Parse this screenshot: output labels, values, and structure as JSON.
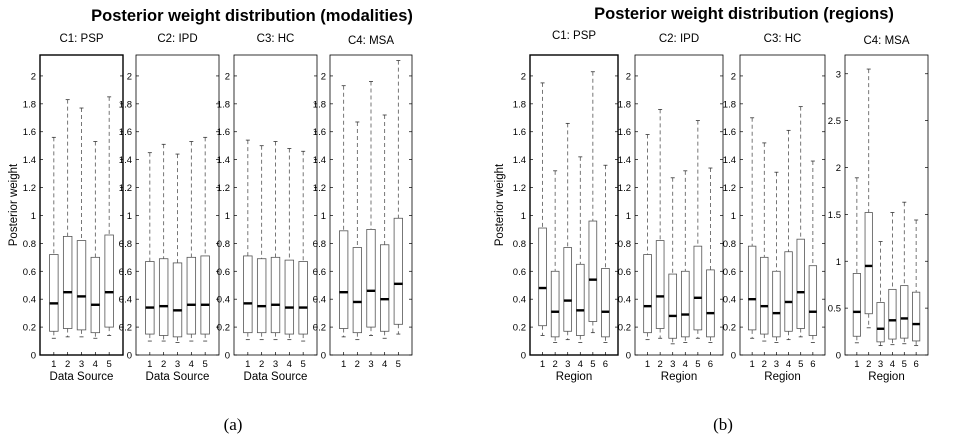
{
  "groups": [
    {
      "title": "Posterior weight distribution (modalities)",
      "caption": "(a)"
    },
    {
      "title": "Posterior weight distribution (regions)",
      "caption": "(b)"
    }
  ],
  "chart_data": [
    {
      "type": "box",
      "group": 0,
      "title": "C1: PSP",
      "xlabel": "Data Source",
      "ylabel": "Posterior weight",
      "categories": [
        "1",
        "2",
        "3",
        "4",
        "5"
      ],
      "ylim": [
        0,
        2.15
      ],
      "yticks": [
        0,
        0.2,
        0.4,
        0.6,
        0.8,
        1,
        1.2,
        1.4,
        1.6,
        1.8,
        2
      ],
      "boxes": [
        {
          "low": 0.12,
          "q1": 0.17,
          "median": 0.37,
          "q3": 0.72,
          "high": 1.56
        },
        {
          "low": 0.13,
          "q1": 0.19,
          "median": 0.45,
          "q3": 0.85,
          "high": 1.83
        },
        {
          "low": 0.13,
          "q1": 0.18,
          "median": 0.42,
          "q3": 0.82,
          "high": 1.77
        },
        {
          "low": 0.12,
          "q1": 0.16,
          "median": 0.36,
          "q3": 0.7,
          "high": 1.53
        },
        {
          "low": 0.14,
          "q1": 0.2,
          "median": 0.45,
          "q3": 0.86,
          "high": 1.85
        }
      ]
    },
    {
      "type": "box",
      "group": 0,
      "title": "C2: IPD",
      "xlabel": "Data Source",
      "ylabel": "",
      "categories": [
        "1",
        "2",
        "3",
        "4",
        "5"
      ],
      "ylim": [
        0,
        2.15
      ],
      "yticks": [
        0,
        0.2,
        0.4,
        0.6,
        0.8,
        1,
        1.2,
        1.4,
        1.6,
        1.8,
        2
      ],
      "boxes": [
        {
          "low": 0.1,
          "q1": 0.15,
          "median": 0.34,
          "q3": 0.67,
          "high": 1.45
        },
        {
          "low": 0.1,
          "q1": 0.14,
          "median": 0.35,
          "q3": 0.69,
          "high": 1.51
        },
        {
          "low": 0.09,
          "q1": 0.13,
          "median": 0.32,
          "q3": 0.66,
          "high": 1.44
        },
        {
          "low": 0.1,
          "q1": 0.15,
          "median": 0.36,
          "q3": 0.7,
          "high": 1.53
        },
        {
          "low": 0.1,
          "q1": 0.15,
          "median": 0.36,
          "q3": 0.71,
          "high": 1.56
        }
      ]
    },
    {
      "type": "box",
      "group": 0,
      "title": "C3: HC",
      "xlabel": "Data Source",
      "ylabel": "",
      "categories": [
        "1",
        "2",
        "3",
        "4",
        "5"
      ],
      "ylim": [
        0,
        2.15
      ],
      "yticks": [
        0,
        0.2,
        0.4,
        0.6,
        0.8,
        1,
        1.2,
        1.4,
        1.6,
        1.8,
        2
      ],
      "boxes": [
        {
          "low": 0.11,
          "q1": 0.16,
          "median": 0.37,
          "q3": 0.71,
          "high": 1.54
        },
        {
          "low": 0.11,
          "q1": 0.16,
          "median": 0.35,
          "q3": 0.69,
          "high": 1.5
        },
        {
          "low": 0.11,
          "q1": 0.16,
          "median": 0.36,
          "q3": 0.7,
          "high": 1.53
        },
        {
          "low": 0.11,
          "q1": 0.15,
          "median": 0.34,
          "q3": 0.68,
          "high": 1.48
        },
        {
          "low": 0.1,
          "q1": 0.15,
          "median": 0.34,
          "q3": 0.67,
          "high": 1.46
        }
      ]
    },
    {
      "type": "box",
      "group": 0,
      "title": "C4: MSA",
      "xlabel": "",
      "ylabel": "",
      "categories": [
        "1",
        "2",
        "3",
        "4",
        "5"
      ],
      "ylim": [
        0,
        2.15
      ],
      "yticks": [
        0,
        0.2,
        0.4,
        0.6,
        0.8,
        1,
        1.2,
        1.4,
        1.6,
        1.8,
        2
      ],
      "boxes": [
        {
          "low": 0.13,
          "q1": 0.19,
          "median": 0.45,
          "q3": 0.89,
          "high": 1.93
        },
        {
          "low": 0.11,
          "q1": 0.16,
          "median": 0.38,
          "q3": 0.77,
          "high": 1.67
        },
        {
          "low": 0.14,
          "q1": 0.2,
          "median": 0.46,
          "q3": 0.9,
          "high": 1.96
        },
        {
          "low": 0.12,
          "q1": 0.17,
          "median": 0.4,
          "q3": 0.79,
          "high": 1.72
        },
        {
          "low": 0.15,
          "q1": 0.22,
          "median": 0.51,
          "q3": 0.98,
          "high": 2.11
        }
      ]
    },
    {
      "type": "box",
      "group": 1,
      "title": "C1: PSP",
      "xlabel": "Region",
      "ylabel": "Posterior weight",
      "categories": [
        "1",
        "2",
        "3",
        "4",
        "5",
        "6"
      ],
      "ylim": [
        0,
        2.15
      ],
      "yticks": [
        0,
        0.2,
        0.4,
        0.6,
        0.8,
        1,
        1.2,
        1.4,
        1.6,
        1.8,
        2
      ],
      "boxes": [
        {
          "low": 0.14,
          "q1": 0.21,
          "median": 0.48,
          "q3": 0.91,
          "high": 1.95
        },
        {
          "low": 0.09,
          "q1": 0.13,
          "median": 0.31,
          "q3": 0.6,
          "high": 1.32
        },
        {
          "low": 0.11,
          "q1": 0.17,
          "median": 0.39,
          "q3": 0.77,
          "high": 1.66
        },
        {
          "low": 0.09,
          "q1": 0.14,
          "median": 0.32,
          "q3": 0.65,
          "high": 1.42
        },
        {
          "low": 0.16,
          "q1": 0.24,
          "median": 0.54,
          "q3": 0.96,
          "high": 2.03
        },
        {
          "low": 0.09,
          "q1": 0.13,
          "median": 0.31,
          "q3": 0.62,
          "high": 1.36
        }
      ]
    },
    {
      "type": "box",
      "group": 1,
      "title": "C2: IPD",
      "xlabel": "Region",
      "ylabel": "",
      "categories": [
        "1",
        "2",
        "3",
        "4",
        "5",
        "6"
      ],
      "ylim": [
        0,
        2.15
      ],
      "yticks": [
        0,
        0.2,
        0.4,
        0.6,
        0.8,
        1,
        1.2,
        1.4,
        1.6,
        1.8,
        2
      ],
      "boxes": [
        {
          "low": 0.11,
          "q1": 0.16,
          "median": 0.35,
          "q3": 0.72,
          "high": 1.58
        },
        {
          "low": 0.12,
          "q1": 0.19,
          "median": 0.42,
          "q3": 0.82,
          "high": 1.76
        },
        {
          "low": 0.08,
          "q1": 0.12,
          "median": 0.28,
          "q3": 0.58,
          "high": 1.27
        },
        {
          "low": 0.09,
          "q1": 0.13,
          "median": 0.29,
          "q3": 0.6,
          "high": 1.32
        },
        {
          "low": 0.12,
          "q1": 0.18,
          "median": 0.41,
          "q3": 0.78,
          "high": 1.68
        },
        {
          "low": 0.09,
          "q1": 0.13,
          "median": 0.3,
          "q3": 0.61,
          "high": 1.34
        }
      ]
    },
    {
      "type": "box",
      "group": 1,
      "title": "C3: HC",
      "xlabel": "Region",
      "ylabel": "",
      "categories": [
        "1",
        "2",
        "3",
        "4",
        "5",
        "6"
      ],
      "ylim": [
        0,
        2.15
      ],
      "yticks": [
        0,
        0.2,
        0.4,
        0.6,
        0.8,
        1,
        1.2,
        1.4,
        1.6,
        1.8,
        2
      ],
      "boxes": [
        {
          "low": 0.12,
          "q1": 0.18,
          "median": 0.4,
          "q3": 0.78,
          "high": 1.7
        },
        {
          "low": 0.1,
          "q1": 0.15,
          "median": 0.35,
          "q3": 0.7,
          "high": 1.52
        },
        {
          "low": 0.09,
          "q1": 0.13,
          "median": 0.3,
          "q3": 0.6,
          "high": 1.31
        },
        {
          "low": 0.11,
          "q1": 0.17,
          "median": 0.38,
          "q3": 0.74,
          "high": 1.61
        },
        {
          "low": 0.13,
          "q1": 0.19,
          "median": 0.45,
          "q3": 0.83,
          "high": 1.78
        },
        {
          "low": 0.09,
          "q1": 0.14,
          "median": 0.31,
          "q3": 0.64,
          "high": 1.39
        }
      ]
    },
    {
      "type": "box",
      "group": 1,
      "title": "C4: MSA",
      "xlabel": "Region",
      "ylabel": "",
      "categories": [
        "1",
        "2",
        "3",
        "4",
        "5",
        "6"
      ],
      "ylim": [
        0,
        3.2
      ],
      "yticks": [
        0,
        0.5,
        1,
        1.5,
        2,
        2.5,
        3
      ],
      "boxes": [
        {
          "low": 0.13,
          "q1": 0.2,
          "median": 0.46,
          "q3": 0.87,
          "high": 1.89
        },
        {
          "low": 0.29,
          "q1": 0.44,
          "median": 0.95,
          "q3": 1.52,
          "high": 3.05
        },
        {
          "low": 0.1,
          "q1": 0.14,
          "median": 0.28,
          "q3": 0.56,
          "high": 1.21
        },
        {
          "low": 0.11,
          "q1": 0.17,
          "median": 0.37,
          "q3": 0.7,
          "high": 1.52
        },
        {
          "low": 0.12,
          "q1": 0.18,
          "median": 0.39,
          "q3": 0.74,
          "high": 1.63
        },
        {
          "low": 0.1,
          "q1": 0.15,
          "median": 0.33,
          "q3": 0.67,
          "high": 1.44
        }
      ]
    }
  ]
}
